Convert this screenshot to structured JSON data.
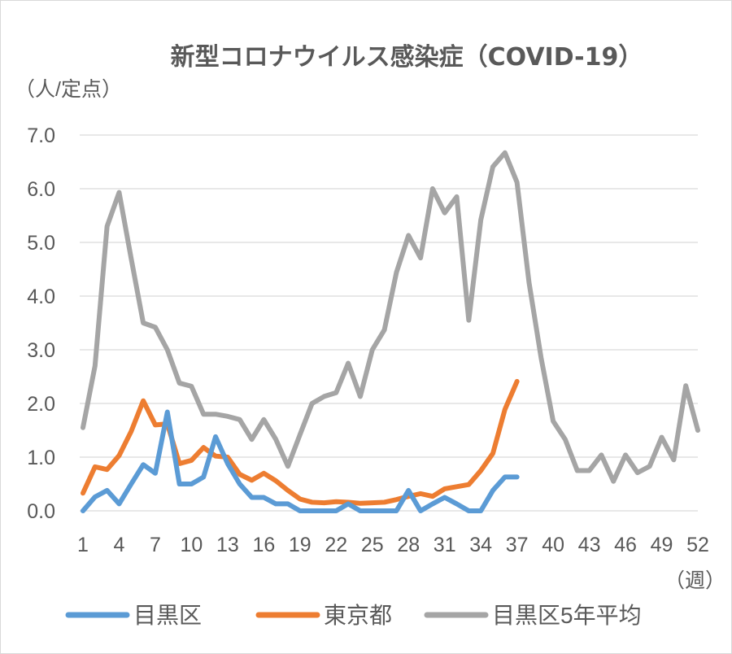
{
  "chart_data": {
    "type": "line",
    "title": "新型コロナウイルス感染症（COVID-19）",
    "ylabel": "（人/定点）",
    "xlabel": "（週）",
    "ylim": [
      0,
      7
    ],
    "yticks": [
      "0.0",
      "1.0",
      "2.0",
      "3.0",
      "4.0",
      "5.0",
      "6.0",
      "7.0"
    ],
    "xticks": [
      "1",
      "4",
      "7",
      "10",
      "13",
      "16",
      "19",
      "22",
      "25",
      "28",
      "31",
      "34",
      "37",
      "40",
      "43",
      "46",
      "49",
      "52"
    ],
    "x_range": [
      1,
      52
    ],
    "grid": "horizontal",
    "legend": "bottom",
    "series": [
      {
        "name": "目黒区",
        "color": "#5b9bd5",
        "x": [
          1,
          2,
          3,
          4,
          5,
          6,
          7,
          8,
          9,
          10,
          11,
          12,
          13,
          14,
          15,
          16,
          17,
          18,
          19,
          20,
          21,
          22,
          23,
          24,
          25,
          26,
          27,
          28,
          29,
          30,
          31,
          32,
          33,
          34,
          35,
          36,
          37
        ],
        "values": [
          0.0,
          0.26,
          0.38,
          0.13,
          0.5,
          0.86,
          0.7,
          1.84,
          0.5,
          0.5,
          0.63,
          1.38,
          0.88,
          0.5,
          0.25,
          0.25,
          0.13,
          0.13,
          0.0,
          0.0,
          0.0,
          0.0,
          0.13,
          0.0,
          0.0,
          0.0,
          0.0,
          0.38,
          0.0,
          0.13,
          0.25,
          0.13,
          0.0,
          0.0,
          0.38,
          0.63,
          0.63
        ]
      },
      {
        "name": "東京都",
        "color": "#ed7d31",
        "x": [
          1,
          2,
          3,
          4,
          5,
          6,
          7,
          8,
          9,
          10,
          11,
          12,
          13,
          14,
          15,
          16,
          17,
          18,
          19,
          20,
          21,
          22,
          23,
          24,
          25,
          26,
          27,
          28,
          29,
          30,
          31,
          32,
          33,
          34,
          35,
          36,
          37
        ],
        "values": [
          0.33,
          0.82,
          0.77,
          1.03,
          1.48,
          2.05,
          1.6,
          1.62,
          0.88,
          0.94,
          1.18,
          1.02,
          1.0,
          0.68,
          0.57,
          0.7,
          0.56,
          0.38,
          0.22,
          0.16,
          0.15,
          0.17,
          0.16,
          0.14,
          0.15,
          0.16,
          0.21,
          0.27,
          0.32,
          0.27,
          0.41,
          0.45,
          0.49,
          0.75,
          1.07,
          1.89,
          2.41
        ]
      },
      {
        "name": "目黒区5年平均",
        "color": "#a5a5a5",
        "x": [
          1,
          2,
          3,
          4,
          5,
          6,
          7,
          8,
          9,
          10,
          11,
          12,
          13,
          14,
          15,
          16,
          17,
          18,
          19,
          20,
          21,
          22,
          23,
          24,
          25,
          26,
          27,
          28,
          29,
          30,
          31,
          32,
          33,
          34,
          35,
          36,
          37,
          38,
          39,
          40,
          41,
          42,
          43,
          44,
          45,
          46,
          47,
          48,
          49,
          50,
          51,
          52
        ],
        "values": [
          1.55,
          2.7,
          5.3,
          5.93,
          4.7,
          3.5,
          3.42,
          3.0,
          2.38,
          2.32,
          1.8,
          1.8,
          1.76,
          1.7,
          1.33,
          1.7,
          1.33,
          0.83,
          1.42,
          2.0,
          2.13,
          2.2,
          2.75,
          2.13,
          3.0,
          3.37,
          4.44,
          5.13,
          4.71,
          6.0,
          5.55,
          5.85,
          3.55,
          5.42,
          6.41,
          6.67,
          6.12,
          4.25,
          2.85,
          1.67,
          1.33,
          0.75,
          0.75,
          1.04,
          0.55,
          1.04,
          0.71,
          0.83,
          1.37,
          0.95,
          2.33,
          1.5
        ]
      }
    ]
  }
}
